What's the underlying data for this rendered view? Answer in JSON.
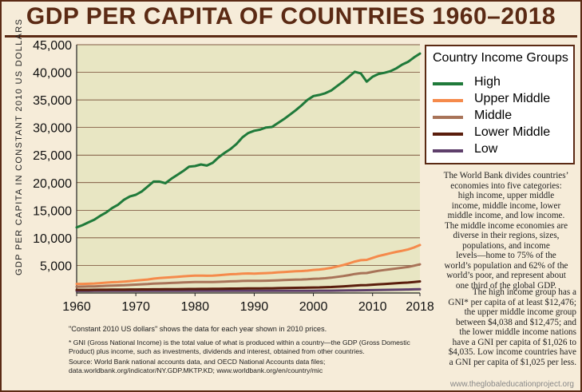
{
  "title": "GDP PER CAPITA OF COUNTRIES 1960–2018",
  "chart_data": {
    "type": "line",
    "ylabel": "GDP PER CAPITA IN CONSTANT 2010 US DOLLARS",
    "xlabel": "",
    "xlim": [
      1960,
      2018
    ],
    "ylim": [
      0,
      45000
    ],
    "x_ticks": [
      "1960",
      "1970",
      "1980",
      "1990",
      "2000",
      "2010",
      "2018"
    ],
    "y_ticks": [
      "5,000",
      "10,000",
      "15,000",
      "20,000",
      "25,000",
      "30,000",
      "35,000",
      "40,000",
      "45,000"
    ],
    "y_tick_values": [
      5000,
      10000,
      15000,
      20000,
      25000,
      30000,
      35000,
      40000,
      45000
    ],
    "grid": "horizontal",
    "x": [
      1960,
      1961,
      1962,
      1963,
      1964,
      1965,
      1966,
      1967,
      1968,
      1969,
      1970,
      1971,
      1972,
      1973,
      1974,
      1975,
      1976,
      1977,
      1978,
      1979,
      1980,
      1981,
      1982,
      1983,
      1984,
      1985,
      1986,
      1987,
      1988,
      1989,
      1990,
      1991,
      1992,
      1993,
      1994,
      1995,
      1996,
      1997,
      1998,
      1999,
      2000,
      2001,
      2002,
      2003,
      2004,
      2005,
      2006,
      2007,
      2008,
      2009,
      2010,
      2011,
      2012,
      2013,
      2014,
      2015,
      2016,
      2017,
      2018
    ],
    "series": [
      {
        "name": "High",
        "color": "#1f7a3a",
        "values": [
          11900,
          12300,
          12800,
          13300,
          14000,
          14600,
          15400,
          16000,
          16900,
          17500,
          17800,
          18400,
          19300,
          20200,
          20200,
          19900,
          20700,
          21400,
          22100,
          22900,
          23000,
          23300,
          23100,
          23600,
          24600,
          25400,
          26100,
          27000,
          28200,
          29000,
          29400,
          29600,
          30000,
          30100,
          30800,
          31500,
          32300,
          33100,
          34000,
          35000,
          35700,
          35900,
          36200,
          36700,
          37500,
          38300,
          39200,
          40100,
          39800,
          38300,
          39200,
          39700,
          39900,
          40200,
          40700,
          41400,
          41900,
          42700,
          43400
        ]
      },
      {
        "name": "Upper Middle",
        "color": "#f58a4b",
        "values": [
          1650,
          1650,
          1680,
          1720,
          1800,
          1880,
          1950,
          2000,
          2070,
          2150,
          2250,
          2350,
          2450,
          2600,
          2700,
          2780,
          2850,
          2940,
          3020,
          3100,
          3140,
          3160,
          3130,
          3150,
          3230,
          3320,
          3400,
          3450,
          3520,
          3540,
          3520,
          3560,
          3600,
          3650,
          3750,
          3800,
          3880,
          3950,
          3980,
          4050,
          4180,
          4250,
          4380,
          4560,
          4800,
          5050,
          5350,
          5700,
          5950,
          6000,
          6350,
          6700,
          6950,
          7200,
          7450,
          7650,
          7900,
          8250,
          8700
        ]
      },
      {
        "name": "Middle",
        "color": "#a87358",
        "values": [
          1150,
          1160,
          1180,
          1200,
          1250,
          1300,
          1340,
          1370,
          1410,
          1460,
          1520,
          1570,
          1620,
          1690,
          1740,
          1780,
          1820,
          1860,
          1910,
          1950,
          1980,
          1990,
          1980,
          1990,
          2030,
          2070,
          2110,
          2140,
          2180,
          2200,
          2200,
          2220,
          2230,
          2250,
          2300,
          2340,
          2390,
          2430,
          2450,
          2490,
          2560,
          2600,
          2670,
          2780,
          2920,
          3070,
          3240,
          3440,
          3580,
          3620,
          3830,
          4020,
          4170,
          4300,
          4440,
          4580,
          4720,
          4950,
          5200
        ]
      },
      {
        "name": "Lower Middle",
        "color": "#5a1d0c",
        "values": [
          560,
          570,
          570,
          580,
          590,
          600,
          605,
          610,
          620,
          630,
          640,
          650,
          655,
          665,
          670,
          675,
          685,
          700,
          710,
          720,
          730,
          740,
          745,
          760,
          770,
          780,
          790,
          800,
          815,
          830,
          840,
          845,
          850,
          860,
          880,
          900,
          920,
          940,
          955,
          975,
          1000,
          1020,
          1050,
          1090,
          1150,
          1200,
          1270,
          1350,
          1400,
          1430,
          1500,
          1580,
          1640,
          1700,
          1770,
          1840,
          1900,
          2000,
          2100
        ]
      },
      {
        "name": "Low",
        "color": "#5e3f6b",
        "values": [
          380,
          380,
          380,
          385,
          385,
          390,
          390,
          390,
          390,
          395,
          395,
          395,
          395,
          400,
          400,
          400,
          400,
          400,
          405,
          405,
          405,
          405,
          405,
          405,
          405,
          405,
          405,
          410,
          410,
          410,
          410,
          405,
          400,
          400,
          400,
          400,
          405,
          405,
          410,
          410,
          410,
          415,
          420,
          425,
          435,
          450,
          460,
          475,
          490,
          500,
          520,
          540,
          560,
          580,
          600,
          620,
          640,
          660,
          680
        ]
      }
    ]
  },
  "legend": {
    "title": "Country Income Groups",
    "items": [
      {
        "label": "High",
        "color": "#1f7a3a"
      },
      {
        "label": "Upper Middle",
        "color": "#f58a4b"
      },
      {
        "label": "Middle",
        "color": "#a87358"
      },
      {
        "label": "Lower Middle",
        "color": "#5a1d0c"
      },
      {
        "label": "Low",
        "color": "#5e3f6b"
      }
    ]
  },
  "side_text": {
    "lines": [
      "The World Bank divides countries’",
      "economies into five categories:",
      "high income, upper middle",
      "income, middle income, lower",
      "middle income, and low income.",
      "The middle income economies are",
      "diverse in their regions, sizes,",
      "populations, and income",
      "levels—home to 75% of the",
      "world’s population and 62% of the",
      "world’s poor, and represent about",
      "one third of the global GDP.",
      "The high income group has a",
      "GNI* per capita of at least $12,476;",
      "the upper middle income group",
      "between $4,038 and $12,475; and",
      "the lower middle income nations",
      "have a GNI per capita of $1,026 to",
      "$4,035. Low income countries have",
      "a GNI per capita of $1,025 per less."
    ]
  },
  "notes": {
    "constant_dollars": "\"Constant 2010 US dollars\" shows the data for each year shown in 2010 prices.",
    "gni_line1": "* GNI (Gross National Income) is the total value of what is produced within a country—the GDP  (Gross Domestic",
    "gni_line2": "Product) plus income, such as investments, dividends and interest, obtained from other countries.",
    "source_line1": "Source: World Bank national accounts data, and OECD National Accounts data files;",
    "source_line2": "data.worldbank.org/indicator/NY.GDP.MKTP.KD; www.worldbank.org/en/country/mic"
  },
  "footer": "www.theglobaleducationproject.org",
  "colors": {
    "border": "#5b2a14",
    "background": "#f6ecd9",
    "plot_bg": "#e8e6c3"
  }
}
